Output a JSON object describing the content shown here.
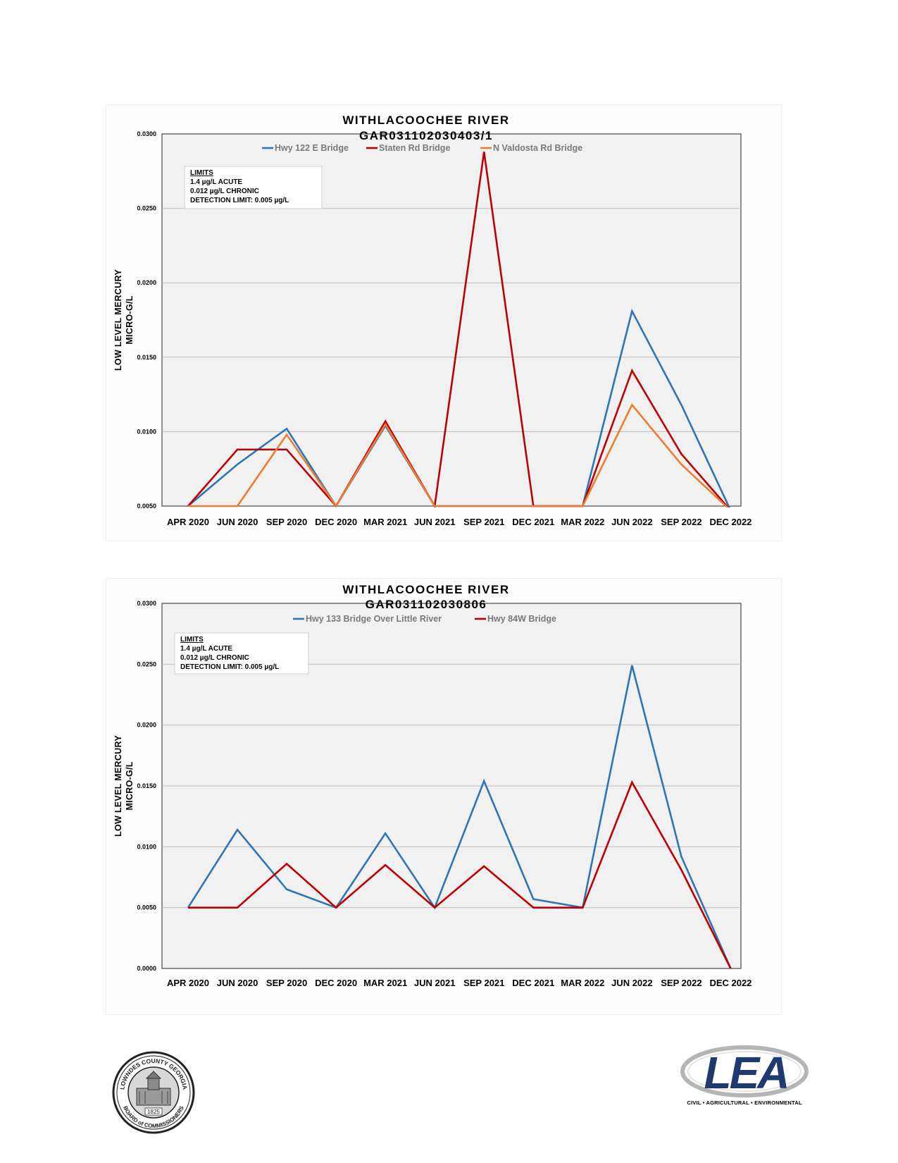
{
  "charts": [
    {
      "title": "WITHLACOOCHEE RIVER",
      "subtitle": "GAR031102030403/1",
      "ylabel_line1": "LOW LEVEL MERCURY",
      "ylabel_line2": "MICRO-G/L",
      "limits_heading": "LIMITS",
      "limits_lines": [
        "1.4 µg/L ACUTE",
        "0.012 µg/L CHRONIC",
        "DETECTION LIMIT: 0.005 µg/L"
      ]
    },
    {
      "title": "WITHLACOOCHEE RIVER",
      "subtitle": "GAR031102030806",
      "ylabel_line1": "LOW LEVEL MERCURY",
      "ylabel_line2": "MICRO-G/L",
      "limits_heading": "LIMITS",
      "limits_lines": [
        "1.4 µg/L ACUTE",
        "0.012 µg/L CHRONIC",
        "DETECTION LIMIT: 0.005 µg/L"
      ]
    }
  ],
  "chart_data": [
    {
      "type": "line",
      "title": "WITHLACOOCHEE RIVER",
      "subtitle": "GAR031102030403/1",
      "xlabel": "",
      "ylabel": "LOW LEVEL MERCURY MICRO-G/L",
      "categories": [
        "APR 2020",
        "JUN 2020",
        "SEP 2020",
        "DEC 2020",
        "MAR 2021",
        "JUN 2021",
        "SEP 2021",
        "DEC 2021",
        "MAR 2022",
        "JUN 2022",
        "SEP 2022",
        "DEC 2022"
      ],
      "yticks": [
        "0.0050",
        "0.0100",
        "0.0150",
        "0.0200",
        "0.0250",
        "0.0300"
      ],
      "ylim": [
        0.005,
        0.03
      ],
      "grid": true,
      "legend": "top-center",
      "series": [
        {
          "name": "Hwy 122 E Bridge",
          "color": "#2e75b6",
          "values": [
            0.005,
            0.0078,
            0.0102,
            0.005,
            0.0104,
            0.005,
            0.005,
            0.005,
            0.005,
            0.0181,
            0.0118,
            0.0047
          ]
        },
        {
          "name": "Staten Rd Bridge",
          "color": "#c00000",
          "values": [
            0.005,
            0.0088,
            0.0088,
            0.005,
            0.0107,
            0.005,
            0.0288,
            0.005,
            0.005,
            0.0141,
            0.0085,
            0.0047
          ]
        },
        {
          "name": "N Valdosta Rd Bridge",
          "color": "#ed7d31",
          "values": [
            0.005,
            0.005,
            0.0098,
            0.005,
            0.0105,
            0.005,
            0.005,
            0.005,
            0.005,
            0.0118,
            0.0078,
            0.0047
          ]
        }
      ]
    },
    {
      "type": "line",
      "title": "WITHLACOOCHEE RIVER",
      "subtitle": "GAR031102030806",
      "xlabel": "",
      "ylabel": "LOW LEVEL MERCURY MICRO-G/L",
      "categories": [
        "APR 2020",
        "JUN 2020",
        "SEP 2020",
        "DEC 2020",
        "MAR 2021",
        "JUN 2021",
        "SEP 2021",
        "DEC 2021",
        "MAR 2022",
        "JUN 2022",
        "SEP 2022",
        "DEC 2022"
      ],
      "yticks": [
        "0.0000",
        "0.0050",
        "0.0100",
        "0.0150",
        "0.0200",
        "0.0250",
        "0.0300"
      ],
      "ylim": [
        0,
        0.03
      ],
      "grid": true,
      "legend": "top-center",
      "series": [
        {
          "name": "Hwy 133 Bridge Over Little River",
          "color": "#2e75b6",
          "values": [
            0.005,
            0.0114,
            0.0065,
            0.005,
            0.0111,
            0.005,
            0.0154,
            0.0057,
            0.005,
            0.0249,
            0.0092,
            0.0
          ]
        },
        {
          "name": "Hwy 84W Bridge",
          "color": "#c00000",
          "values": [
            0.005,
            0.005,
            0.0086,
            0.005,
            0.0085,
            0.005,
            0.0084,
            0.005,
            0.005,
            0.0153,
            0.0081,
            0.0
          ]
        }
      ]
    }
  ],
  "footer": {
    "seal_text_top": "LOWNDES COUNTY GEORGIA",
    "seal_text_bottom": "BOARD of COMMISSIONERS",
    "seal_year": "1825",
    "lea_logo": "LEA",
    "lea_tagline": "CIVIL • AGRICULTURAL • ENVIRONMENTAL"
  }
}
